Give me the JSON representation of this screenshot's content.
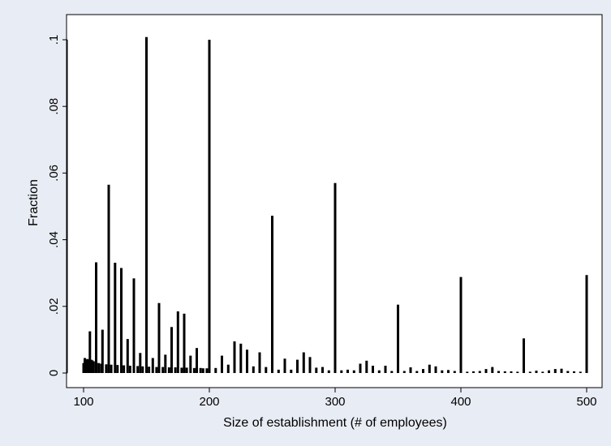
{
  "chart_data": {
    "type": "bar",
    "title": "",
    "xlabel": "Size of establishment (# of employees)",
    "ylabel": "Fraction",
    "xlim": [
      100,
      500
    ],
    "ylim": [
      0,
      0.1
    ],
    "x_ticks": [
      100,
      200,
      300,
      400,
      500
    ],
    "x_tick_labels": [
      "100",
      "200",
      "300",
      "400",
      "500"
    ],
    "y_ticks": [
      0,
      0.02,
      0.04,
      0.06,
      0.08,
      0.1
    ],
    "y_tick_labels": [
      "0",
      ".02",
      ".04",
      ".06",
      ".08",
      ".1"
    ],
    "grid": false,
    "legend": "none",
    "bar_color": "#000000",
    "plot_background": "#ffffff",
    "outer_background": "#e8ecf4",
    "series": [
      {
        "x": [
          100,
          101,
          102,
          103,
          104,
          105,
          106,
          107,
          108,
          110,
          112,
          114,
          115,
          118,
          120,
          122,
          125,
          127,
          130,
          132,
          135,
          137,
          140,
          143,
          145,
          147,
          150,
          152,
          155,
          158,
          160,
          163,
          165,
          168,
          170,
          173,
          175,
          178,
          180,
          182,
          185,
          188,
          190,
          193,
          195,
          198,
          200,
          205,
          210,
          215,
          220,
          225,
          230,
          235,
          240,
          245,
          250,
          255,
          260,
          265,
          270,
          275,
          280,
          285,
          290,
          295,
          300,
          305,
          310,
          315,
          320,
          325,
          330,
          335,
          340,
          345,
          350,
          355,
          360,
          365,
          370,
          375,
          380,
          385,
          390,
          395,
          400,
          405,
          410,
          415,
          420,
          425,
          430,
          435,
          440,
          445,
          450,
          455,
          460,
          465,
          470,
          475,
          480,
          485,
          490,
          495,
          500
        ],
        "values": [
          0.003,
          0.0045,
          0.004,
          0.0042,
          0.004,
          0.0125,
          0.004,
          0.0038,
          0.0035,
          0.0332,
          0.003,
          0.0028,
          0.013,
          0.0026,
          0.0565,
          0.0025,
          0.0331,
          0.0024,
          0.0315,
          0.0023,
          0.0102,
          0.0022,
          0.0284,
          0.0021,
          0.006,
          0.002,
          0.1008,
          0.0019,
          0.0045,
          0.0018,
          0.021,
          0.0018,
          0.0055,
          0.0017,
          0.0138,
          0.0017,
          0.0185,
          0.0016,
          0.0178,
          0.0016,
          0.0052,
          0.0015,
          0.0075,
          0.0015,
          0.0014,
          0.0014,
          0.1,
          0.0015,
          0.0052,
          0.0025,
          0.0095,
          0.0088,
          0.007,
          0.002,
          0.0062,
          0.0018,
          0.0472,
          0.001,
          0.0043,
          0.001,
          0.004,
          0.0062,
          0.0048,
          0.0016,
          0.0018,
          0.0008,
          0.057,
          0.0008,
          0.001,
          0.0008,
          0.0028,
          0.0037,
          0.0022,
          0.0008,
          0.0022,
          0.0006,
          0.0205,
          0.0006,
          0.0017,
          0.0006,
          0.0012,
          0.0025,
          0.002,
          0.0008,
          0.0009,
          0.0006,
          0.0288,
          0.0004,
          0.0005,
          0.0006,
          0.0012,
          0.0018,
          0.0006,
          0.0005,
          0.0005,
          0.0004,
          0.0104,
          0.0004,
          0.0007,
          0.0004,
          0.0008,
          0.0012,
          0.0013,
          0.0006,
          0.0005,
          0.0004,
          0.0294
        ]
      }
    ]
  }
}
